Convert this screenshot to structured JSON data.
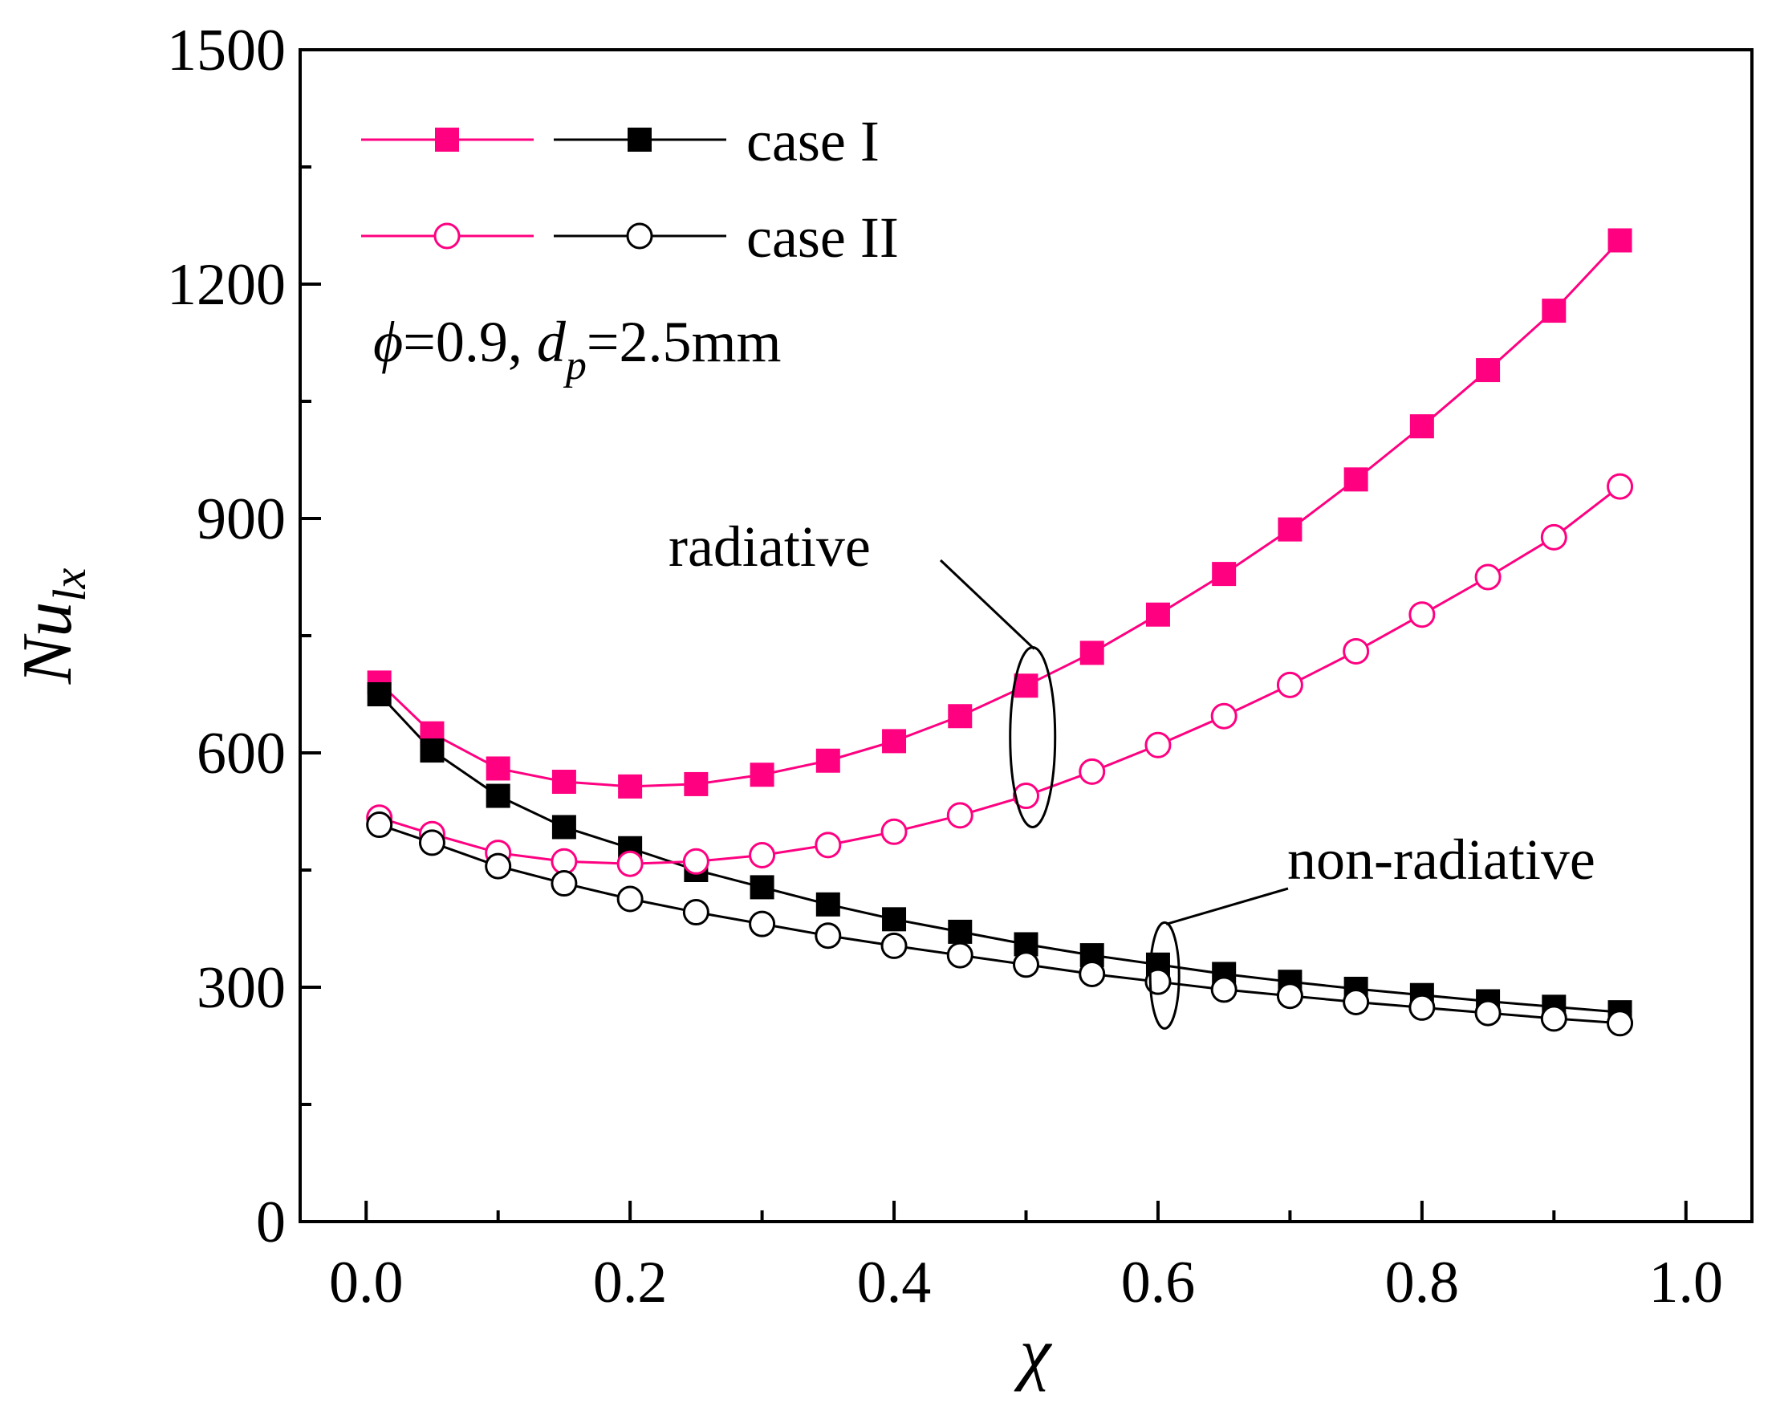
{
  "chart_data": {
    "type": "line",
    "title": "",
    "xlabel": "χ",
    "ylabel_main": "Nu",
    "ylabel_sub": "lx",
    "xlim": [
      -0.05,
      1.05
    ],
    "ylim": [
      0,
      1500
    ],
    "x_ticks": [
      0.0,
      0.2,
      0.4,
      0.6,
      0.8,
      1.0
    ],
    "x_tick_labels": [
      "0.0",
      "0.2",
      "0.4",
      "0.6",
      "0.8",
      "1.0"
    ],
    "y_ticks": [
      0,
      300,
      600,
      900,
      1200,
      1500
    ],
    "y_tick_labels": [
      "0",
      "300",
      "600",
      "900",
      "1200",
      "1500"
    ],
    "x_minor_step": 0.1,
    "y_minor_step": 150,
    "grid": false,
    "colors": {
      "radiative": "#ff0080",
      "non_radiative": "#000000"
    },
    "series": [
      {
        "name": "case I (radiative)",
        "group": "radiative",
        "color": "#ff0080",
        "marker": "square-filled",
        "x": [
          0.01,
          0.05,
          0.1,
          0.15,
          0.2,
          0.25,
          0.3,
          0.35,
          0.4,
          0.45,
          0.5,
          0.55,
          0.6,
          0.65,
          0.7,
          0.75,
          0.8,
          0.85,
          0.9,
          0.95
        ],
        "values": [
          690,
          625,
          580,
          563,
          557,
          560,
          572,
          590,
          615,
          647,
          686,
          728,
          777,
          829,
          886,
          950,
          1018,
          1090,
          1166,
          1256
        ]
      },
      {
        "name": "case I (non-radiative)",
        "group": "non-radiative",
        "color": "#000000",
        "marker": "square-filled",
        "x": [
          0.01,
          0.05,
          0.1,
          0.15,
          0.2,
          0.25,
          0.3,
          0.35,
          0.4,
          0.45,
          0.5,
          0.55,
          0.6,
          0.65,
          0.7,
          0.75,
          0.8,
          0.85,
          0.9,
          0.95
        ],
        "values": [
          675,
          603,
          545,
          505,
          478,
          450,
          428,
          406,
          387,
          371,
          355,
          341,
          329,
          317,
          307,
          298,
          290,
          282,
          275,
          268
        ]
      },
      {
        "name": "case II (radiative)",
        "group": "radiative",
        "color": "#ff0080",
        "marker": "circle-open",
        "x": [
          0.01,
          0.05,
          0.1,
          0.15,
          0.2,
          0.25,
          0.3,
          0.35,
          0.4,
          0.45,
          0.5,
          0.55,
          0.6,
          0.65,
          0.7,
          0.75,
          0.8,
          0.85,
          0.9,
          0.95
        ],
        "values": [
          517,
          496,
          472,
          461,
          458,
          461,
          469,
          482,
          499,
          520,
          545,
          576,
          610,
          647,
          687,
          730,
          777,
          825,
          876,
          941
        ]
      },
      {
        "name": "case II (non-radiative)",
        "group": "non-radiative",
        "color": "#000000",
        "marker": "circle-open",
        "x": [
          0.01,
          0.05,
          0.1,
          0.15,
          0.2,
          0.25,
          0.3,
          0.35,
          0.4,
          0.45,
          0.5,
          0.55,
          0.6,
          0.65,
          0.7,
          0.75,
          0.8,
          0.85,
          0.9,
          0.95
        ],
        "values": [
          508,
          485,
          455,
          433,
          413,
          396,
          381,
          366,
          353,
          341,
          329,
          317,
          307,
          297,
          289,
          281,
          274,
          267,
          260,
          254
        ]
      }
    ],
    "legend": {
      "placement": "top-left",
      "entries": [
        {
          "label": "case I",
          "marker": "square-filled"
        },
        {
          "label": "case II",
          "marker": "circle-open"
        }
      ]
    },
    "parameters": {
      "phi_symbol": "ϕ",
      "phi_text": "=0.9,",
      "dp_symbol": "d",
      "dp_sub": "p",
      "dp_text": "=2.5mm"
    },
    "annotations": [
      {
        "text": "radiative",
        "target_x": 0.505,
        "target_y": 620
      },
      {
        "text": "non-radiative",
        "target_x": 0.605,
        "target_y": 315
      }
    ]
  }
}
